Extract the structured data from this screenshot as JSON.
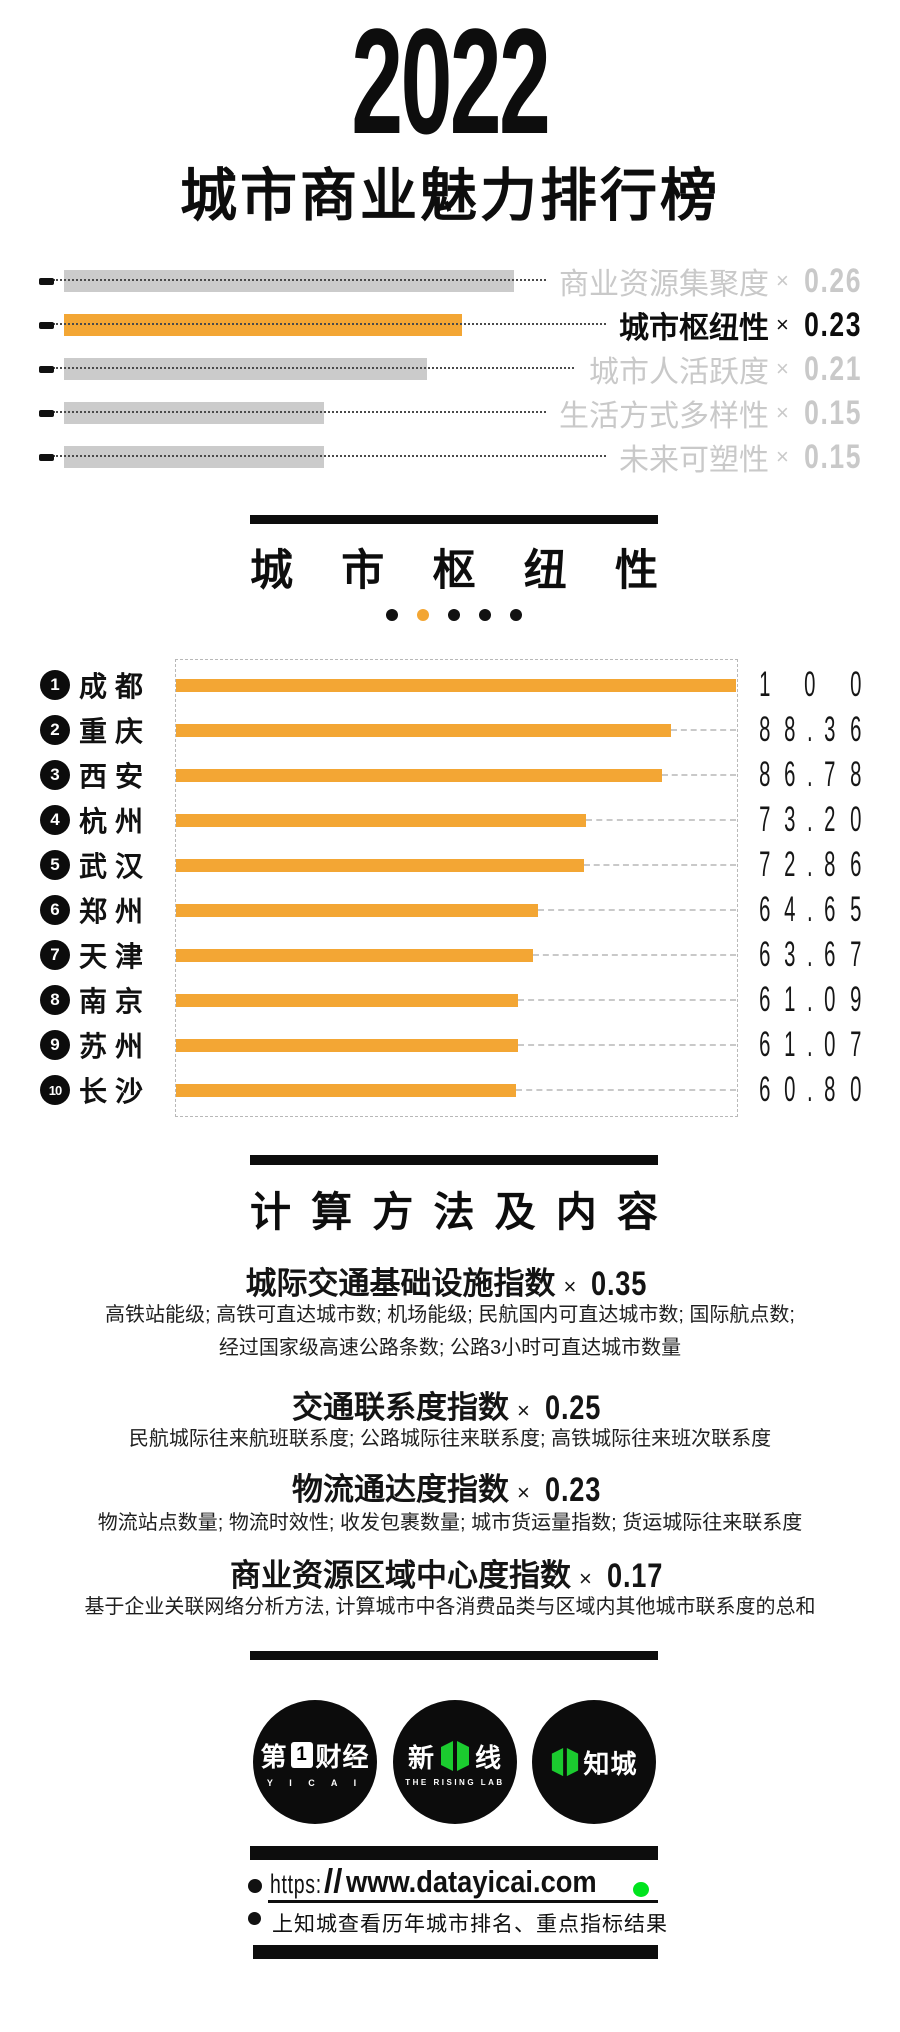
{
  "title": {
    "year": "2022",
    "subtitle": "城市商业魅力排行榜"
  },
  "weights": {
    "multiply_sign": "×",
    "items": [
      {
        "label": "商业资源集聚度",
        "weight": "0.26",
        "active": false
      },
      {
        "label": "城市枢纽性",
        "weight": "0.23",
        "active": true
      },
      {
        "label": "城市人活跃度",
        "weight": "0.21",
        "active": false
      },
      {
        "label": "生活方式多样性",
        "weight": "0.15",
        "active": false
      },
      {
        "label": "未来可塑性",
        "weight": "0.15",
        "active": false
      }
    ]
  },
  "section": {
    "title": "城市枢纽性",
    "page_dots": {
      "count": 5,
      "active_index": 1
    }
  },
  "chart_data": {
    "type": "bar",
    "orientation": "horizontal",
    "title": "城市枢纽性",
    "categories": [
      "成都",
      "重庆",
      "西安",
      "杭州",
      "武汉",
      "郑州",
      "天津",
      "南京",
      "苏州",
      "长沙"
    ],
    "ranks": [
      "1",
      "2",
      "3",
      "4",
      "5",
      "6",
      "7",
      "8",
      "9",
      "10"
    ],
    "values": [
      100,
      88.36,
      86.78,
      73.2,
      72.86,
      64.65,
      63.67,
      61.09,
      61.07,
      60.8
    ],
    "value_labels": [
      "100",
      "88.36",
      "86.78",
      "73.20",
      "72.86",
      "64.65",
      "63.67",
      "61.09",
      "61.07",
      "60.80"
    ],
    "xlim": [
      0,
      100
    ],
    "grid": false,
    "bar_color": "#F3A634"
  },
  "calc": {
    "title": "计算方法及内容",
    "multiply_sign": "×",
    "blocks": [
      {
        "name": "城际交通基础设施指数",
        "weight": "0.35",
        "desc_lines": [
          "高铁站能级; 高铁可直达城市数; 机场能级; 民航国内可直达城市数; 国际航点数;",
          "经过国家级高速公路条数; 公路3小时可直达城市数量"
        ]
      },
      {
        "name": "交通联系度指数",
        "weight": "0.25",
        "desc_lines": [
          "民航城际往来航班联系度; 公路城际往来联系度; 高铁城际往来班次联系度"
        ]
      },
      {
        "name": "物流通达度指数",
        "weight": "0.23",
        "desc_lines": [
          "物流站点数量; 物流时效性; 收发包裹数量; 城市货运量指数; 货运城际往来联系度"
        ]
      },
      {
        "name": "商业资源区域中心度指数",
        "weight": "0.17",
        "desc_lines": [
          "基于企业关联网络分析方法, 计算城市中各消费品类与区域内其他城市联系度的总和"
        ]
      }
    ]
  },
  "footer": {
    "logos": [
      {
        "id": "yicai",
        "left_char": "第",
        "box_char": "1",
        "right_chars": "财经",
        "sub": "Y I C A I"
      },
      {
        "id": "rising-lab",
        "left_char": "新",
        "right_chars": "线",
        "sub": "THE RISING LAB"
      },
      {
        "id": "zhicheng",
        "right_chars": "知城",
        "sub": ""
      }
    ],
    "url_prefix": "https:",
    "url_slashes": "//",
    "url_main": "www.datayicai.com",
    "note": "上知城查看历年城市排名、重点指标结果"
  },
  "colors": {
    "orange": "#F3A634",
    "gray_bar": "#CBCBCB",
    "gray_text": "#C9C9C9",
    "black": "#111111",
    "logo_green": "#1BCB2F",
    "dot_green": "#00E41E"
  }
}
